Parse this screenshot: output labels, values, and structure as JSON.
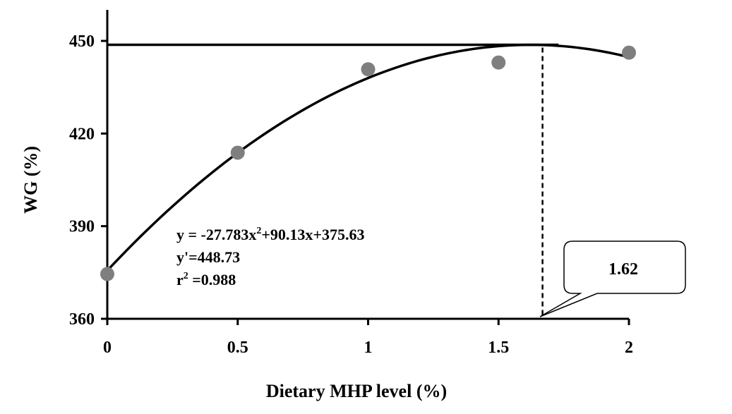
{
  "chart_data": {
    "type": "scatter",
    "xlabel": "Dietary MHP level (%)",
    "ylabel": "WG  (%)",
    "xlim": [
      0,
      2
    ],
    "ylim": [
      360,
      450
    ],
    "x_ticks": [
      "0",
      "0.5",
      "1",
      "1.5",
      "2"
    ],
    "y_ticks": [
      "360",
      "390",
      "420",
      "450"
    ],
    "series": [
      {
        "points": [
          {
            "x": 0,
            "y": 374.5
          },
          {
            "x": 0.5,
            "y": 413.8
          },
          {
            "x": 1,
            "y": 440.8
          },
          {
            "x": 1.5,
            "y": 443.0
          },
          {
            "x": 2,
            "y": 446.2
          }
        ],
        "color": "#7f7f7f"
      }
    ],
    "fit": {
      "a": -27.783,
      "b": 90.13,
      "c": 375.63,
      "x_range": [
        0,
        2
      ]
    },
    "plateau": {
      "y": 448.73,
      "x_end": 1.73
    },
    "optimum": {
      "x": 1.62
    },
    "annotations": {
      "equation_main": "y = -27.783x",
      "equation_sup": "2",
      "equation_rest": "+90.13x+375.63",
      "yprime": "y'=448.73",
      "r2_main": "r",
      "r2_sup": "2",
      "r2_rest": " =0.988"
    },
    "callout": {
      "label": "1.62"
    },
    "grid": false,
    "legend": "none"
  }
}
